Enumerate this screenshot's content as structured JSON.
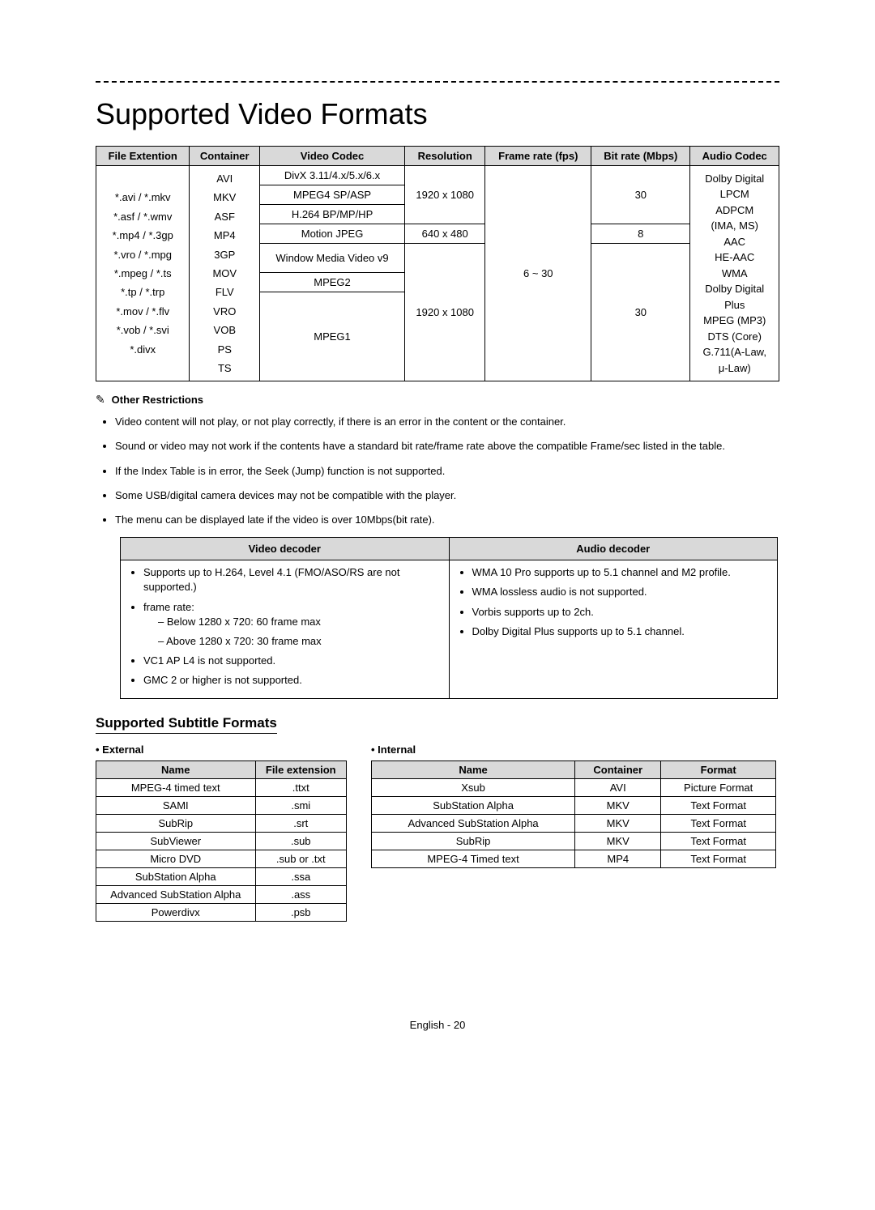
{
  "title": "Supported Video Formats",
  "formats_table": {
    "headers": [
      "File Extention",
      "Container",
      "Video Codec",
      "Resolution",
      "Frame rate (fps)",
      "Bit rate (Mbps)",
      "Audio Codec"
    ],
    "file_ext": "*.avi / *.mkv\n*.asf / *.wmv\n*.mp4 / *.3gp\n*.vro / *.mpg\n*.mpeg / *.ts\n*.tp / *.trp\n*.mov / *.flv\n*.vob / *.svi\n*.divx",
    "container": "AVI\nMKV\nASF\nMP4\n3GP\nMOV\nFLV\nVRO\nVOB\nPS\nTS",
    "codecs": {
      "row1": "DivX 3.11/4.x/5.x/6.x",
      "row2": "MPEG4 SP/ASP",
      "row3": "H.264 BP/MP/HP",
      "row4": "Motion JPEG",
      "row5": "Window Media Video v9",
      "row6": "MPEG2",
      "row7": "MPEG1"
    },
    "resolutions": {
      "r1": "1920 x 1080",
      "r2": "640 x 480",
      "r3": "1920 x 1080"
    },
    "frame_rate": "6 ~ 30",
    "bit_rate": {
      "b1": "30",
      "b2": "8",
      "b3": "30"
    },
    "audio_codec": "Dolby Digital\nLPCM\nADPCM\n(IMA, MS)\nAAC\nHE-AAC\nWMA\nDolby Digital\nPlus\nMPEG (MP3)\nDTS (Core)\nG.711(A-Law,\nμ-Law)"
  },
  "restrictions": {
    "title": "Other Restrictions",
    "items": [
      "Video content will not play, or not play correctly, if there is an error in the content or the container.",
      "Sound or video may not work if the contents have a standard bit rate/frame rate above the compatible Frame/sec listed in the table.",
      "If the Index Table is in error, the Seek (Jump) function is not supported.",
      "Some USB/digital camera devices may not be compatible with the player.",
      "The menu can be displayed late if the video is over 10Mbps(bit rate)."
    ]
  },
  "decoder": {
    "headers": [
      "Video decoder",
      "Audio decoder"
    ],
    "video": {
      "i0": "Supports up to H.264, Level 4.1 (FMO/ASO/RS are not supported.)",
      "i1": "frame rate:",
      "i1a": "Below 1280 x 720: 60 frame max",
      "i1b": "Above 1280 x 720: 30 frame max",
      "i2": "VC1 AP L4 is not supported.",
      "i3": "GMC 2 or higher is not supported."
    },
    "audio": {
      "i0": "WMA 10 Pro supports up to 5.1 channel and M2 profile.",
      "i1": "WMA lossless audio is not supported.",
      "i2": "Vorbis supports up to 2ch.",
      "i3": "Dolby Digital Plus supports up to 5.1 channel."
    }
  },
  "subtitle_heading": "Supported Subtitle Formats",
  "external": {
    "label": "External",
    "headers": [
      "Name",
      "File extension"
    ],
    "rows": [
      [
        "MPEG-4 timed text",
        ".ttxt"
      ],
      [
        "SAMI",
        ".smi"
      ],
      [
        "SubRip",
        ".srt"
      ],
      [
        "SubViewer",
        ".sub"
      ],
      [
        "Micro DVD",
        ".sub or .txt"
      ],
      [
        "SubStation Alpha",
        ".ssa"
      ],
      [
        "Advanced SubStation Alpha",
        ".ass"
      ],
      [
        "Powerdivx",
        ".psb"
      ]
    ]
  },
  "internal": {
    "label": "Internal",
    "headers": [
      "Name",
      "Container",
      "Format"
    ],
    "rows": [
      [
        "Xsub",
        "AVI",
        "Picture Format"
      ],
      [
        "SubStation Alpha",
        "MKV",
        "Text Format"
      ],
      [
        "Advanced SubStation Alpha",
        "MKV",
        "Text Format"
      ],
      [
        "SubRip",
        "MKV",
        "Text Format"
      ],
      [
        "MPEG-4 Timed text",
        "MP4",
        "Text Format"
      ]
    ]
  },
  "footer": "English - 20"
}
